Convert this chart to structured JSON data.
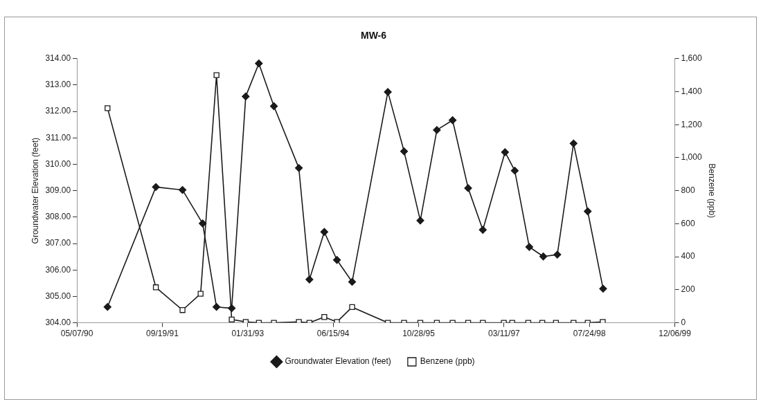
{
  "chart_data": {
    "type": "line",
    "title": "MW-6",
    "ylabel": "Groundwater Elevation (feet)",
    "y2label": "Benzene (ppb)",
    "xlim": [
      "1990-05-07",
      "1999-12-06"
    ],
    "xticks": [
      {
        "value": "1990-05-07",
        "label": "05/07/90"
      },
      {
        "value": "1991-09-19",
        "label": "09/19/91"
      },
      {
        "value": "1993-01-31",
        "label": "01/31/93"
      },
      {
        "value": "1994-06-15",
        "label": "06/15/94"
      },
      {
        "value": "1995-10-28",
        "label": "10/28/95"
      },
      {
        "value": "1997-03-11",
        "label": "03/11/97"
      },
      {
        "value": "1998-07-24",
        "label": "07/24/98"
      },
      {
        "value": "1999-12-06",
        "label": "12/06/99"
      }
    ],
    "ylim": [
      304,
      314
    ],
    "yticks": [
      {
        "value": 304,
        "label": "304.00"
      },
      {
        "value": 305,
        "label": "305.00"
      },
      {
        "value": 306,
        "label": "306.00"
      },
      {
        "value": 307,
        "label": "307.00"
      },
      {
        "value": 308,
        "label": "308.00"
      },
      {
        "value": 309,
        "label": "309.00"
      },
      {
        "value": 310,
        "label": "310.00"
      },
      {
        "value": 311,
        "label": "311.00"
      },
      {
        "value": 312,
        "label": "312.00"
      },
      {
        "value": 313,
        "label": "313.00"
      },
      {
        "value": 314,
        "label": "314.00"
      }
    ],
    "y2lim": [
      0,
      1600
    ],
    "y2ticks": [
      0,
      {
        "value": 200,
        "label": "200"
      },
      {
        "value": 400,
        "label": "400"
      },
      {
        "value": 600,
        "label": "600"
      },
      {
        "value": 800,
        "label": "800"
      },
      {
        "value": 1000,
        "label": "1,000"
      },
      {
        "value": 1200,
        "label": "1,200"
      },
      {
        "value": 1400,
        "label": "1,400"
      },
      {
        "value": 1600,
        "label": "1,600"
      }
    ],
    "legend": "bottom",
    "line_style": "solid",
    "series": [
      {
        "name": "Groundwater Elevation (feet)",
        "color": "#1a1a1a",
        "marker": "diamond",
        "x": [
          "1990-11-02",
          "1991-08-12",
          "1992-01-15",
          "1992-05-12",
          "1992-08-01",
          "1992-10-29",
          "1993-01-19",
          "1993-04-06",
          "1993-07-03",
          "1993-11-26",
          "1994-01-27",
          "1994-04-24",
          "1994-07-07",
          "1994-10-04",
          "1995-05-01",
          "1995-08-04",
          "1995-11-07",
          "1996-02-12",
          "1996-05-14",
          "1996-08-13",
          "1996-11-07",
          "1997-03-17",
          "1997-05-13",
          "1997-08-06",
          "1997-10-27",
          "1998-01-17",
          "1998-04-22",
          "1998-07-14",
          "1998-10-12"
        ],
        "values": [
          304.6,
          309.14,
          309.03,
          307.76,
          304.6,
          304.55,
          312.57,
          313.82,
          312.2,
          309.86,
          305.64,
          307.44,
          306.38,
          305.55,
          312.74,
          310.49,
          307.87,
          311.3,
          311.67,
          309.1,
          307.52,
          310.46,
          309.76,
          306.87,
          306.51,
          306.58,
          310.79,
          308.22,
          305.29
        ]
      },
      {
        "name": "Benzene (ppb)",
        "color": "#1a1a1a",
        "marker": "square",
        "axis": "y2",
        "x": [
          "1990-11-02",
          "1991-08-12",
          "1992-01-15",
          "1992-04-30",
          "1992-08-01",
          "1992-10-29",
          "1993-01-19",
          "1993-04-06",
          "1993-07-03",
          "1993-11-26",
          "1994-01-27",
          "1994-04-24",
          "1994-07-07",
          "1994-10-04",
          "1995-05-01",
          "1995-08-04",
          "1995-11-07",
          "1996-02-12",
          "1996-05-14",
          "1996-08-13",
          "1996-11-07",
          "1997-03-10",
          "1997-04-28",
          "1997-07-31",
          "1997-10-21",
          "1998-01-09",
          "1998-04-22",
          "1998-07-14",
          "1998-10-10"
        ],
        "values": [
          1300,
          215,
          77,
          176,
          1500,
          20,
          5,
          0,
          0,
          5,
          0,
          35,
          5,
          95,
          0,
          0,
          0,
          0,
          0,
          0,
          0,
          0,
          0,
          0,
          0,
          0,
          0,
          0,
          5
        ]
      }
    ]
  }
}
